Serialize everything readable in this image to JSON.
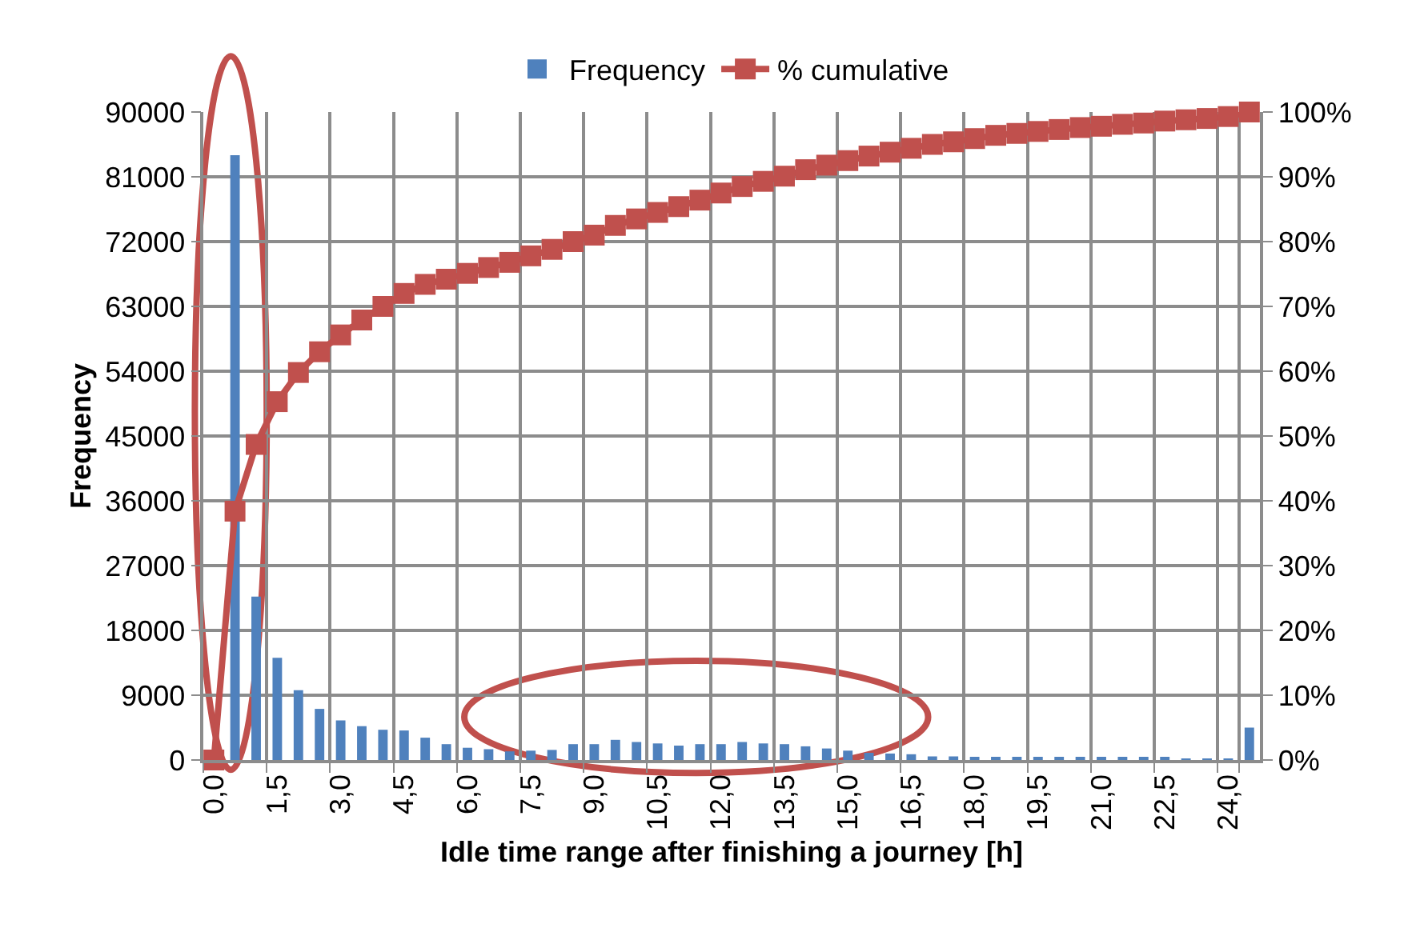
{
  "chart_data": {
    "type": "bar",
    "xlabel": "Idle time range after finishing a journey [h]",
    "ylabel": "Frequency",
    "categories": [
      "0,0",
      null,
      null,
      "1,5",
      null,
      null,
      "3,0",
      null,
      null,
      "4,5",
      null,
      null,
      "6,0",
      null,
      null,
      "7,5",
      null,
      null,
      "9,0",
      null,
      null,
      "10,5",
      null,
      null,
      "12,0",
      null,
      null,
      "13,5",
      null,
      null,
      "15,0",
      null,
      null,
      "16,5",
      null,
      null,
      "18,0",
      null,
      null,
      "19,5",
      null,
      null,
      "21,0",
      null,
      null,
      "22,5",
      null,
      null,
      "24,0",
      null
    ],
    "series": [
      {
        "name": "Frequency",
        "color": "#4f81bd",
        "values": [
          0,
          84000,
          22700,
          14200,
          9700,
          7100,
          5500,
          4700,
          4200,
          4100,
          3100,
          2200,
          1700,
          1500,
          1200,
          1300,
          1400,
          2200,
          2200,
          2800,
          2500,
          2300,
          2000,
          2200,
          2200,
          2500,
          2300,
          2200,
          1900,
          1600,
          1300,
          1000,
          900,
          800,
          500,
          500,
          400,
          400,
          400,
          400,
          400,
          300,
          300,
          300,
          300,
          300,
          200,
          200,
          200,
          4500
        ]
      },
      {
        "name": "% cumulative",
        "type": "line",
        "axis": "y2",
        "color": "#c0504d",
        "marker": "square",
        "values": [
          0,
          38.4,
          48.7,
          55.3,
          59.8,
          63,
          65.6,
          67.9,
          70,
          72,
          73.4,
          74.2,
          75.1,
          76,
          76.8,
          77.8,
          78.8,
          80,
          81,
          82.5,
          83.5,
          84.5,
          85.4,
          86.4,
          87.5,
          88.5,
          89.3,
          90.1,
          91.1,
          91.8,
          92.5,
          93.2,
          93.8,
          94.4,
          95,
          95.4,
          95.9,
          96.4,
          96.7,
          97,
          97.3,
          97.6,
          97.8,
          98.1,
          98.3,
          98.6,
          98.8,
          99,
          99.3,
          100
        ]
      }
    ],
    "ylim": [
      0,
      90000
    ],
    "yticks": [
      0,
      9000,
      18000,
      27000,
      36000,
      45000,
      54000,
      63000,
      72000,
      81000,
      90000
    ],
    "y2lim": [
      0,
      100
    ],
    "y2ticks": [
      {
        "value": 0,
        "label": "0%"
      },
      {
        "value": 10,
        "label": "10%"
      },
      {
        "value": 20,
        "label": "20%"
      },
      {
        "value": 30,
        "label": "30%"
      },
      {
        "value": 40,
        "label": "40%"
      },
      {
        "value": 50,
        "label": "50%"
      },
      {
        "value": 60,
        "label": "60%"
      },
      {
        "value": 70,
        "label": "70%"
      },
      {
        "value": 80,
        "label": "80%"
      },
      {
        "value": 90,
        "label": "90%"
      },
      {
        "value": 100,
        "label": "100%"
      }
    ],
    "grid": true,
    "legend": "top"
  }
}
